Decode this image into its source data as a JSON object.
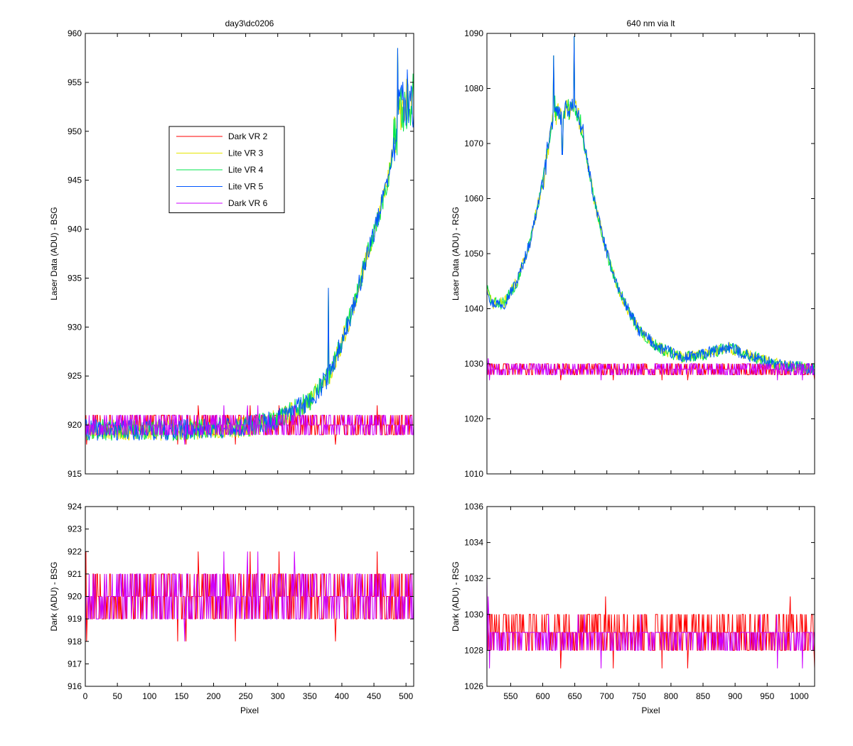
{
  "chart_data": [
    {
      "id": "top-left",
      "type": "line",
      "title": "day3\\dc0206",
      "xlabel": "",
      "ylabel": "Laser Data (ADU) - BSG",
      "xlim": [
        0,
        512
      ],
      "ylim": [
        915,
        960
      ],
      "xticks": [
        0,
        50,
        100,
        150,
        200,
        250,
        300,
        350,
        400,
        450,
        500
      ],
      "yticks": [
        915,
        920,
        925,
        930,
        935,
        940,
        945,
        950,
        955,
        960
      ],
      "show_xtick_labels": false,
      "legend": {
        "position": "upper-left-inside",
        "entries": [
          "Dark VR 2",
          "Lite VR 3",
          "Lite VR 4",
          "Lite VR 5",
          "Dark VR 6"
        ]
      },
      "series": [
        {
          "name": "Dark VR 2",
          "color": "#ff0000",
          "kind": "dark",
          "base": 920,
          "amp": 1.2,
          "seed": 11
        },
        {
          "name": "Lite VR 3",
          "color": "#e6e600",
          "kind": "lite-exp",
          "seed": 23
        },
        {
          "name": "Lite VR 4",
          "color": "#00e64d",
          "kind": "lite-exp",
          "seed": 37
        },
        {
          "name": "Lite VR 5",
          "color": "#0055ff",
          "kind": "lite-exp",
          "seed": 41
        },
        {
          "name": "Dark VR 6",
          "color": "#cc00ff",
          "kind": "dark",
          "base": 920,
          "amp": 1.2,
          "seed": 53
        }
      ],
      "lite_shape": [
        [
          0,
          919.5
        ],
        [
          150,
          919.5
        ],
        [
          250,
          919.8
        ],
        [
          300,
          920.5
        ],
        [
          350,
          922.5
        ],
        [
          380,
          925
        ],
        [
          400,
          928.5
        ],
        [
          420,
          932.5
        ],
        [
          440,
          937.5
        ],
        [
          460,
          942
        ],
        [
          475,
          946
        ],
        [
          485,
          950
        ],
        [
          490,
          953
        ],
        [
          500,
          953
        ]
      ]
    },
    {
      "id": "top-right",
      "type": "line",
      "title": "640 nm via lt",
      "xlabel": "",
      "ylabel": "Laser Data (ADU) - RSG",
      "xlim": [
        513,
        1024
      ],
      "ylim": [
        1010,
        1090
      ],
      "xticks": [
        550,
        600,
        650,
        700,
        750,
        800,
        850,
        900,
        950,
        1000
      ],
      "yticks": [
        1010,
        1020,
        1030,
        1040,
        1050,
        1060,
        1070,
        1080,
        1090
      ],
      "show_xtick_labels": false,
      "series": [
        {
          "name": "Dark VR 2",
          "color": "#ff0000",
          "kind": "dark",
          "base": 1028.7,
          "amp": 1.0,
          "seed": 61
        },
        {
          "name": "Lite VR 3",
          "color": "#e6e600",
          "kind": "lite-peak",
          "seed": 71
        },
        {
          "name": "Lite VR 4",
          "color": "#00e64d",
          "kind": "lite-peak",
          "seed": 83
        },
        {
          "name": "Lite VR 5",
          "color": "#0055ff",
          "kind": "lite-peak",
          "seed": 97
        },
        {
          "name": "Dark VR 6",
          "color": "#cc00ff",
          "kind": "dark",
          "base": 1028.7,
          "amp": 1.0,
          "seed": 101
        }
      ],
      "lite_shape": [
        [
          513,
          1044
        ],
        [
          520,
          1041
        ],
        [
          540,
          1041
        ],
        [
          560,
          1045
        ],
        [
          580,
          1052
        ],
        [
          600,
          1063
        ],
        [
          610,
          1070
        ],
        [
          618,
          1077
        ],
        [
          622,
          1075
        ],
        [
          640,
          1076
        ],
        [
          650,
          1077
        ],
        [
          660,
          1073
        ],
        [
          680,
          1060
        ],
        [
          700,
          1050
        ],
        [
          720,
          1043
        ],
        [
          750,
          1036
        ],
        [
          780,
          1033
        ],
        [
          820,
          1031
        ],
        [
          860,
          1032
        ],
        [
          890,
          1033
        ],
        [
          920,
          1031.5
        ],
        [
          960,
          1030
        ],
        [
          1024,
          1029
        ]
      ]
    },
    {
      "id": "bottom-left",
      "type": "line",
      "title": "",
      "xlabel": "Pixel",
      "ylabel": "Dark (ADU) - BSG",
      "xlim": [
        0,
        512
      ],
      "ylim": [
        916,
        924
      ],
      "xticks": [
        0,
        50,
        100,
        150,
        200,
        250,
        300,
        350,
        400,
        450,
        500
      ],
      "yticks": [
        916,
        917,
        918,
        919,
        920,
        921,
        922,
        923,
        924
      ],
      "show_xtick_labels": true,
      "series": [
        {
          "name": "Dark VR 2",
          "color": "#ff0000",
          "kind": "dark",
          "base": 919.8,
          "amp": 1.3,
          "seed": 11
        },
        {
          "name": "Dark VR 6",
          "color": "#cc00ff",
          "kind": "dark",
          "base": 920.2,
          "amp": 1.3,
          "seed": 53
        }
      ]
    },
    {
      "id": "bottom-right",
      "type": "line",
      "title": "",
      "xlabel": "Pixel",
      "ylabel": "Dark (ADU) - RSG",
      "xlim": [
        513,
        1024
      ],
      "ylim": [
        1026,
        1036
      ],
      "xticks": [
        550,
        600,
        650,
        700,
        750,
        800,
        850,
        900,
        950,
        1000
      ],
      "yticks": [
        1026,
        1028,
        1030,
        1032,
        1034,
        1036
      ],
      "show_xtick_labels": true,
      "series": [
        {
          "name": "Dark VR 2",
          "color": "#ff0000",
          "kind": "dark",
          "base": 1028.8,
          "amp": 1.1,
          "seed": 61
        },
        {
          "name": "Dark VR 6",
          "color": "#cc00ff",
          "kind": "dark",
          "base": 1028.6,
          "amp": 1.1,
          "seed": 101
        }
      ]
    }
  ]
}
